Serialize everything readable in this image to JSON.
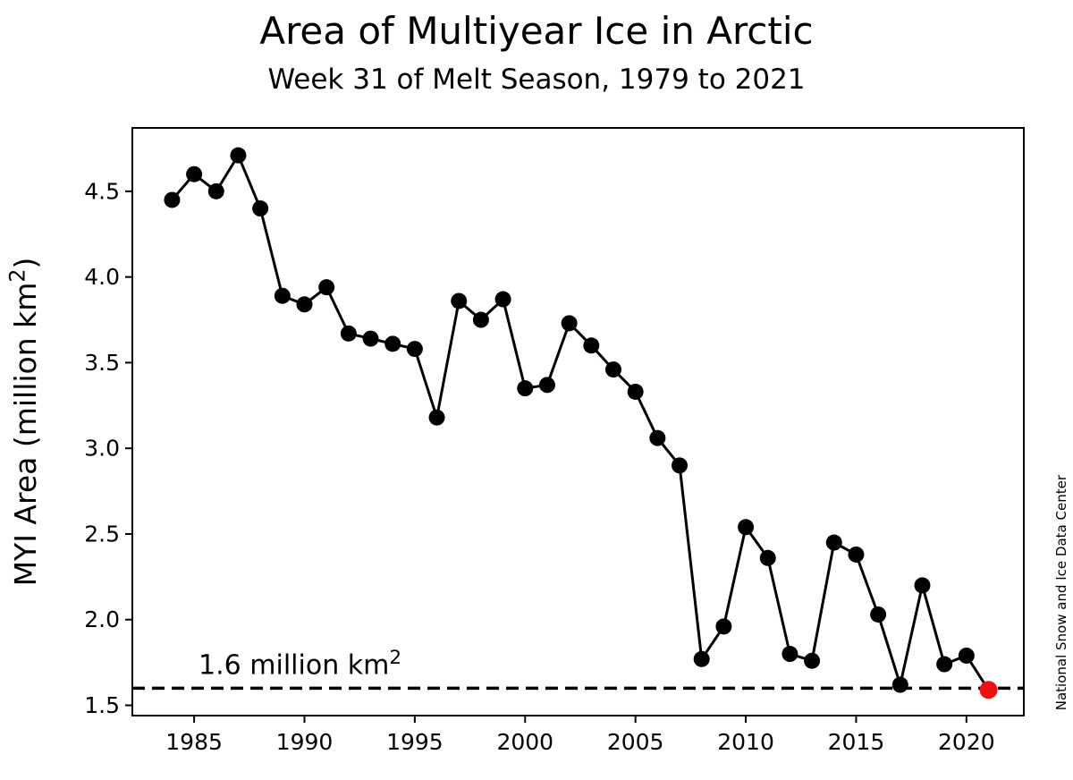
{
  "title": "Area of Multiyear Ice in Arctic",
  "subtitle": "Week 31 of Melt Season, 1979 to 2021",
  "credit": "National Snow and Ice Data Center",
  "chart_data": {
    "type": "line",
    "title": "Area of Multiyear Ice in Arctic",
    "subtitle": "Week 31 of Melt Season, 1979 to 2021",
    "xlabel": "",
    "ylabel": "MYI Area (million km²)",
    "x": [
      1984,
      1985,
      1986,
      1987,
      1988,
      1989,
      1990,
      1991,
      1992,
      1993,
      1994,
      1995,
      1996,
      1997,
      1998,
      1999,
      2000,
      2001,
      2002,
      2003,
      2004,
      2005,
      2006,
      2007,
      2008,
      2009,
      2010,
      2011,
      2012,
      2013,
      2014,
      2015,
      2016,
      2017,
      2018,
      2019,
      2020,
      2021
    ],
    "values": [
      4.45,
      4.6,
      4.5,
      4.71,
      4.4,
      3.89,
      3.84,
      3.94,
      3.67,
      3.64,
      3.61,
      3.58,
      3.18,
      3.86,
      3.75,
      3.87,
      3.35,
      3.37,
      3.73,
      3.6,
      3.46,
      3.33,
      3.06,
      2.9,
      1.77,
      1.96,
      2.54,
      2.36,
      1.8,
      1.76,
      2.45,
      2.38,
      2.03,
      1.62,
      2.2,
      1.74,
      1.79,
      1.59
    ],
    "xlim": [
      1982.2,
      2022.6
    ],
    "ylim": [
      1.44,
      4.87
    ],
    "xticks": [
      1985,
      1990,
      1995,
      2000,
      2005,
      2010,
      2015,
      2020
    ],
    "yticks": [
      1.5,
      2.0,
      2.5,
      3.0,
      3.5,
      4.0,
      4.5
    ],
    "grid": false,
    "legend": null,
    "line_color": "#000000",
    "marker": "circle",
    "highlight_last_point": true,
    "highlight_color": "#ee1111",
    "threshold": {
      "value": 1.6,
      "label": "1.6 million km²",
      "style": "dashed",
      "color": "#000000",
      "label_x": 1985.2
    }
  }
}
